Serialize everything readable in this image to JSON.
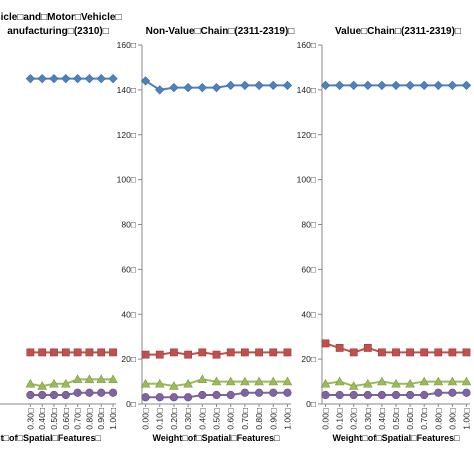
{
  "chart_data": [
    {
      "type": "line",
      "title_lines": [
        "hicle□and□Motor□Vehicle□",
        "anufacturing□(2310)□"
      ],
      "xlabel": "ht□of□Spatial□Features□",
      "ylabel": "",
      "categories": [
        "0.30□",
        "0.40□",
        "0.50□",
        "0.60□",
        "0.70□",
        "0.80□",
        "0.90□",
        "1.00□"
      ],
      "yticks": [],
      "ylim": [
        0,
        160
      ],
      "series": [
        {
          "color": "#4f81bd",
          "marker": "diamond",
          "values": [
            145,
            145,
            145,
            145,
            145,
            145,
            145,
            145
          ]
        },
        {
          "color": "#c0504d",
          "marker": "square",
          "values": [
            23,
            23,
            23,
            23,
            23,
            23,
            23,
            23
          ]
        },
        {
          "color": "#9bbb59",
          "marker": "triangle",
          "values": [
            9,
            8,
            9,
            9,
            11,
            11,
            11,
            11
          ]
        },
        {
          "color": "#8064a2",
          "marker": "circle",
          "values": [
            4,
            4,
            4,
            4,
            5,
            5,
            5,
            5
          ]
        }
      ]
    },
    {
      "type": "line",
      "title_lines": [
        "Non-Value□Chain□(2311-2319)□"
      ],
      "xlabel": "Weight□of□Spatial□Features□",
      "ylabel": "",
      "categories": [
        "0.00□",
        "0.10□",
        "0.20□",
        "0.30□",
        "0.40□",
        "0.50□",
        "0.60□",
        "0.70□",
        "0.80□",
        "0.90□",
        "1.00□"
      ],
      "yticks": [
        "0□",
        "20□",
        "40□",
        "60□",
        "80□",
        "100□",
        "120□",
        "140□",
        "160□"
      ],
      "ylim": [
        0,
        160
      ],
      "series": [
        {
          "color": "#4f81bd",
          "marker": "diamond",
          "values": [
            144,
            140,
            141,
            141,
            141,
            141,
            142,
            142,
            142,
            142,
            142
          ]
        },
        {
          "color": "#c0504d",
          "marker": "square",
          "values": [
            22,
            22,
            23,
            22,
            23,
            22,
            23,
            23,
            23,
            23,
            23
          ]
        },
        {
          "color": "#9bbb59",
          "marker": "triangle",
          "values": [
            9,
            9,
            8,
            9,
            11,
            10,
            10,
            10,
            10,
            10,
            10
          ]
        },
        {
          "color": "#8064a2",
          "marker": "circle",
          "values": [
            3,
            3,
            3,
            3,
            4,
            4,
            4,
            5,
            5,
            5,
            5
          ]
        }
      ]
    },
    {
      "type": "line",
      "title_lines": [
        "Value□Chain□(2311-2319)□"
      ],
      "xlabel": "Weight□of□Spatial□Features□",
      "ylabel": "",
      "categories": [
        "0.00□",
        "0.10□",
        "0.20□",
        "0.30□",
        "0.40□",
        "0.50□",
        "0.60□",
        "0.70□",
        "0.80□",
        "0.90□",
        "1.00□"
      ],
      "yticks": [
        "0□",
        "20□",
        "40□",
        "60□",
        "80□",
        "100□",
        "120□",
        "140□",
        "160□"
      ],
      "ylim": [
        0,
        160
      ],
      "series": [
        {
          "color": "#4f81bd",
          "marker": "diamond",
          "values": [
            142,
            142,
            142,
            142,
            142,
            142,
            142,
            142,
            142,
            142,
            142
          ]
        },
        {
          "color": "#c0504d",
          "marker": "square",
          "values": [
            27,
            25,
            23,
            25,
            23,
            23,
            23,
            23,
            23,
            23,
            23
          ]
        },
        {
          "color": "#9bbb59",
          "marker": "triangle",
          "values": [
            9,
            10,
            8,
            9,
            10,
            9,
            9,
            10,
            10,
            10,
            10
          ]
        },
        {
          "color": "#8064a2",
          "marker": "circle",
          "values": [
            4,
            4,
            4,
            4,
            4,
            4,
            4,
            4,
            5,
            5,
            5
          ]
        }
      ]
    }
  ]
}
